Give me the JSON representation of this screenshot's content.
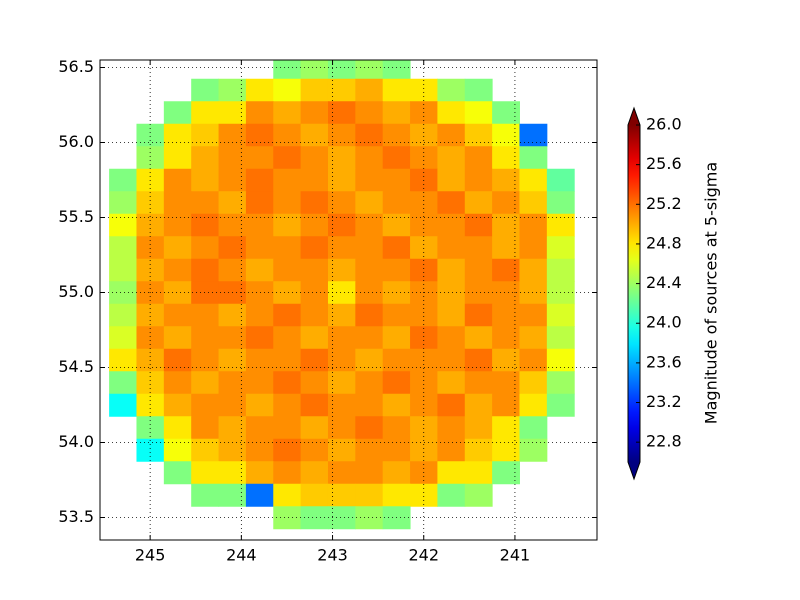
{
  "chart_data": {
    "type": "heatmap",
    "colormap": "jet",
    "grid": true,
    "colorbar_label": "Magnitude of sources at 5-sigma",
    "xlim": [
      245.55,
      240.1
    ],
    "ylim": [
      53.35,
      56.55
    ],
    "xticks": [
      245,
      244,
      243,
      242,
      241
    ],
    "yticks": [
      {
        "value": 53.5,
        "label": "53.5"
      },
      {
        "value": 54.0,
        "label": "54.0"
      },
      {
        "value": 54.5,
        "label": "54.5"
      },
      {
        "value": 55.0,
        "label": "55.0"
      },
      {
        "value": 55.5,
        "label": "55.5"
      },
      {
        "value": 56.0,
        "label": "56.0"
      },
      {
        "value": 56.5,
        "label": "56.5"
      }
    ],
    "clim": [
      22.6,
      26.0
    ],
    "cticks": [
      22.8,
      23.2,
      23.6,
      {
        "value": 24.0,
        "label": "24.0"
      },
      24.4,
      24.8,
      25.2,
      25.6,
      {
        "value": 26.0,
        "label": "26.0"
      }
    ],
    "x": [
      245.3,
      245.0,
      244.7,
      244.4,
      244.1,
      243.8,
      243.5,
      243.2,
      242.9,
      242.6,
      242.3,
      242.0,
      241.7,
      241.4,
      241.1,
      240.8,
      240.5
    ],
    "y": [
      56.5,
      56.35,
      56.2,
      56.05,
      55.9,
      55.75,
      55.6,
      55.45,
      55.3,
      55.15,
      55.0,
      54.85,
      54.7,
      54.55,
      54.4,
      54.25,
      54.1,
      53.95,
      53.8,
      53.65,
      53.5
    ],
    "values": [
      [
        null,
        null,
        null,
        null,
        null,
        null,
        24.3,
        24.4,
        24.3,
        24.4,
        24.3,
        null,
        null,
        null,
        null,
        null,
        null
      ],
      [
        null,
        null,
        null,
        24.3,
        24.4,
        24.8,
        24.7,
        24.9,
        24.9,
        25.0,
        24.8,
        24.8,
        24.4,
        24.3,
        null,
        null,
        null
      ],
      [
        null,
        null,
        24.3,
        24.8,
        24.8,
        25.1,
        25.0,
        25.1,
        25.2,
        25.1,
        25.0,
        25.1,
        24.8,
        24.7,
        24.3,
        null,
        null
      ],
      [
        null,
        24.3,
        24.8,
        24.9,
        25.1,
        25.2,
        25.1,
        25.0,
        25.1,
        25.2,
        25.1,
        25.0,
        25.1,
        24.9,
        24.7,
        23.4,
        null
      ],
      [
        null,
        24.4,
        24.8,
        25.0,
        25.1,
        25.1,
        25.2,
        25.1,
        25.0,
        25.1,
        25.2,
        25.1,
        25.0,
        25.1,
        24.8,
        24.3,
        null
      ],
      [
        24.3,
        24.8,
        25.1,
        25.0,
        25.1,
        25.2,
        25.1,
        25.1,
        25.0,
        25.1,
        25.1,
        25.2,
        25.0,
        25.1,
        25.0,
        24.8,
        24.2
      ],
      [
        24.4,
        24.9,
        25.1,
        25.1,
        25.0,
        25.2,
        25.1,
        25.2,
        25.1,
        25.0,
        25.1,
        25.1,
        25.2,
        25.0,
        25.1,
        24.9,
        24.3
      ],
      [
        24.7,
        25.0,
        25.1,
        25.2,
        25.1,
        25.1,
        25.0,
        25.1,
        25.2,
        25.1,
        25.0,
        25.1,
        25.1,
        25.2,
        25.0,
        25.1,
        24.8
      ],
      [
        24.5,
        25.1,
        25.0,
        25.1,
        25.2,
        25.1,
        25.1,
        25.2,
        25.1,
        25.1,
        25.2,
        25.0,
        25.1,
        25.1,
        25.0,
        25.1,
        24.6
      ],
      [
        24.5,
        25.0,
        25.1,
        25.2,
        25.1,
        25.0,
        25.1,
        25.1,
        25.0,
        25.1,
        25.1,
        25.2,
        25.0,
        25.1,
        25.2,
        25.0,
        24.5
      ],
      [
        24.4,
        25.1,
        25.0,
        25.2,
        25.2,
        25.1,
        25.0,
        25.1,
        24.8,
        25.1,
        25.0,
        25.1,
        25.0,
        25.1,
        25.1,
        25.0,
        24.5
      ],
      [
        24.5,
        25.0,
        25.1,
        25.1,
        25.0,
        25.1,
        25.2,
        25.1,
        25.0,
        25.2,
        25.1,
        25.1,
        25.0,
        25.2,
        25.1,
        25.1,
        24.6
      ],
      [
        24.6,
        25.1,
        25.0,
        25.1,
        25.1,
        25.2,
        25.1,
        25.0,
        25.1,
        25.1,
        25.0,
        25.2,
        25.1,
        25.0,
        25.1,
        25.0,
        24.5
      ],
      [
        24.8,
        25.0,
        25.2,
        25.1,
        25.0,
        25.1,
        25.1,
        25.2,
        25.1,
        25.0,
        25.1,
        25.1,
        25.1,
        25.2,
        25.0,
        25.1,
        24.7
      ],
      [
        24.3,
        24.9,
        25.1,
        25.0,
        25.1,
        25.1,
        25.2,
        25.1,
        25.0,
        25.1,
        25.2,
        25.1,
        25.0,
        25.1,
        25.1,
        24.9,
        24.4
      ],
      [
        23.9,
        24.8,
        25.0,
        25.1,
        25.1,
        25.0,
        25.1,
        25.2,
        25.1,
        25.1,
        25.0,
        25.1,
        25.2,
        25.0,
        25.1,
        24.8,
        24.3
      ],
      [
        null,
        24.3,
        24.8,
        25.1,
        25.0,
        25.1,
        25.1,
        25.0,
        25.1,
        25.2,
        25.1,
        25.0,
        25.1,
        25.0,
        24.8,
        24.3,
        null
      ],
      [
        null,
        23.9,
        24.7,
        24.9,
        25.0,
        25.1,
        25.2,
        25.1,
        25.0,
        25.1,
        25.1,
        25.0,
        25.1,
        24.9,
        24.8,
        24.4,
        null
      ],
      [
        null,
        null,
        24.3,
        24.8,
        24.8,
        25.0,
        25.1,
        25.0,
        25.1,
        25.1,
        25.0,
        25.1,
        24.8,
        24.8,
        24.3,
        null,
        null
      ],
      [
        null,
        null,
        null,
        24.3,
        24.3,
        23.4,
        24.8,
        24.9,
        24.9,
        24.9,
        24.8,
        24.8,
        24.3,
        24.4,
        null,
        null,
        null
      ],
      [
        null,
        null,
        null,
        null,
        null,
        null,
        24.4,
        24.3,
        24.3,
        24.4,
        24.3,
        null,
        null,
        null,
        null,
        null,
        null
      ]
    ]
  }
}
